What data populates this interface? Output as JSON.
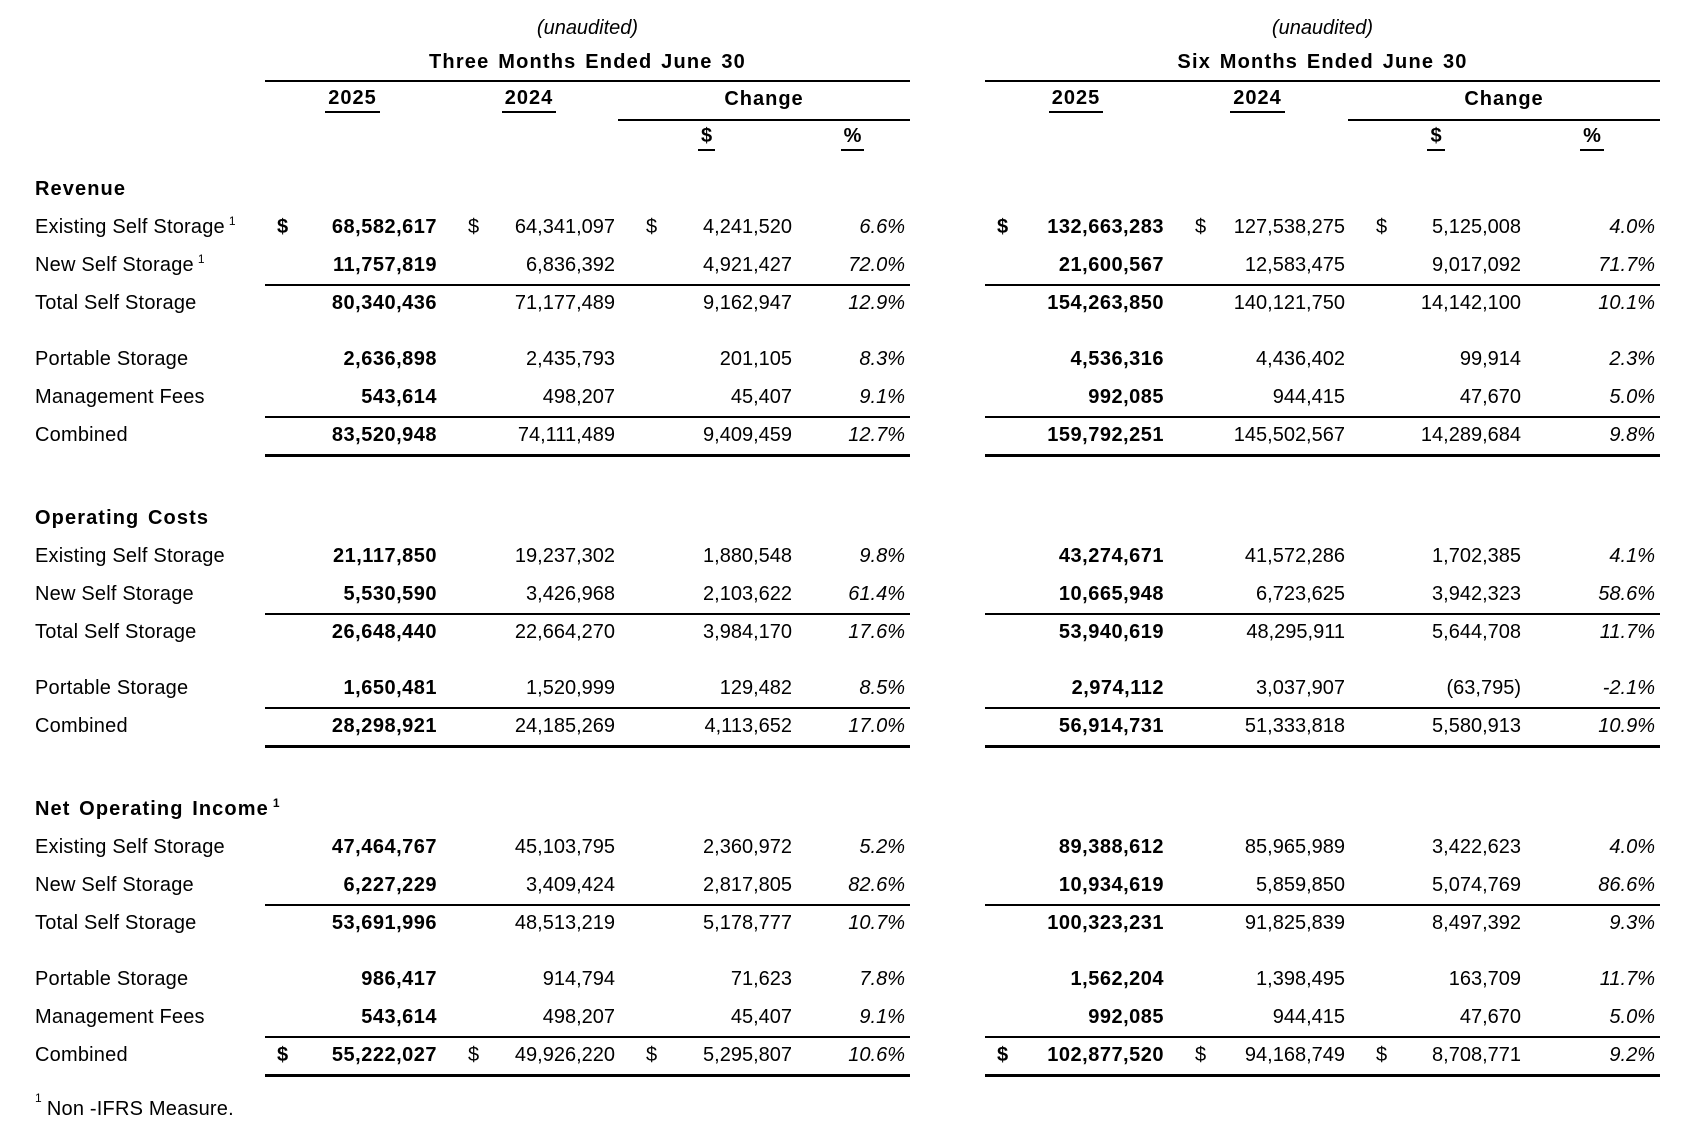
{
  "header": {
    "unaudited": "(unaudited)",
    "left_title": "Three Months Ended June 30",
    "right_title": "Six Months Ended June 30",
    "col_2025": "2025",
    "col_2024": "2024",
    "col_change": "Change",
    "col_dollar": "$",
    "col_pct": "%"
  },
  "footnote": {
    "sup": "1",
    "text": "Non -IFRS Measure."
  },
  "sections": [
    {
      "title": "Revenue",
      "title_sup": "",
      "rows": [
        {
          "label": "Existing Self Storage",
          "sup": "1",
          "tm": {
            "c25": "$",
            "v25": "68,582,617",
            "c24": "$",
            "v24": "64,341,097",
            "cch": "$",
            "vch": "4,241,520",
            "pct": "6.6%"
          },
          "sm": {
            "c25": "$",
            "v25": "132,663,283",
            "c24": "$",
            "v24": "127,538,275",
            "cch": "$",
            "vch": "5,125,008",
            "pct": "4.0%"
          }
        },
        {
          "label": "New Self Storage",
          "sup": "1",
          "tm": {
            "c25": "",
            "v25": "11,757,819",
            "c24": "",
            "v24": "6,836,392",
            "cch": "",
            "vch": "4,921,427",
            "pct": "72.0%"
          },
          "sm": {
            "c25": "",
            "v25": "21,600,567",
            "c24": "",
            "v24": "12,583,475",
            "cch": "",
            "vch": "9,017,092",
            "pct": "71.7%"
          }
        },
        {
          "label": "Total Self Storage",
          "sup": "",
          "tm": {
            "c25": "",
            "v25": "80,340,436",
            "c24": "",
            "v24": "71,177,489",
            "cch": "",
            "vch": "9,162,947",
            "pct": "12.9%"
          },
          "sm": {
            "c25": "",
            "v25": "154,263,850",
            "c24": "",
            "v24": "140,121,750",
            "cch": "",
            "vch": "14,142,100",
            "pct": "10.1%"
          }
        },
        {
          "label": "Portable Storage",
          "sup": "",
          "tm": {
            "c25": "",
            "v25": "2,636,898",
            "c24": "",
            "v24": "2,435,793",
            "cch": "",
            "vch": "201,105",
            "pct": "8.3%"
          },
          "sm": {
            "c25": "",
            "v25": "4,536,316",
            "c24": "",
            "v24": "4,436,402",
            "cch": "",
            "vch": "99,914",
            "pct": "2.3%"
          }
        },
        {
          "label": "Management Fees",
          "sup": "",
          "tm": {
            "c25": "",
            "v25": "543,614",
            "c24": "",
            "v24": "498,207",
            "cch": "",
            "vch": "45,407",
            "pct": "9.1%"
          },
          "sm": {
            "c25": "",
            "v25": "992,085",
            "c24": "",
            "v24": "944,415",
            "cch": "",
            "vch": "47,670",
            "pct": "5.0%"
          }
        },
        {
          "label": "Combined",
          "sup": "",
          "tm": {
            "c25": "",
            "v25": "83,520,948",
            "c24": "",
            "v24": "74,111,489",
            "cch": "",
            "vch": "9,409,459",
            "pct": "12.7%"
          },
          "sm": {
            "c25": "",
            "v25": "159,792,251",
            "c24": "",
            "v24": "145,502,567",
            "cch": "",
            "vch": "14,289,684",
            "pct": "9.8%"
          }
        }
      ]
    },
    {
      "title": "Operating Costs",
      "title_sup": "",
      "rows": [
        {
          "label": "Existing Self Storage",
          "sup": "",
          "tm": {
            "c25": "",
            "v25": "21,117,850",
            "c24": "",
            "v24": "19,237,302",
            "cch": "",
            "vch": "1,880,548",
            "pct": "9.8%"
          },
          "sm": {
            "c25": "",
            "v25": "43,274,671",
            "c24": "",
            "v24": "41,572,286",
            "cch": "",
            "vch": "1,702,385",
            "pct": "4.1%"
          }
        },
        {
          "label": "New Self Storage",
          "sup": "",
          "tm": {
            "c25": "",
            "v25": "5,530,590",
            "c24": "",
            "v24": "3,426,968",
            "cch": "",
            "vch": "2,103,622",
            "pct": "61.4%"
          },
          "sm": {
            "c25": "",
            "v25": "10,665,948",
            "c24": "",
            "v24": "6,723,625",
            "cch": "",
            "vch": "3,942,323",
            "pct": "58.6%"
          }
        },
        {
          "label": "Total Self Storage",
          "sup": "",
          "tm": {
            "c25": "",
            "v25": "26,648,440",
            "c24": "",
            "v24": "22,664,270",
            "cch": "",
            "vch": "3,984,170",
            "pct": "17.6%"
          },
          "sm": {
            "c25": "",
            "v25": "53,940,619",
            "c24": "",
            "v24": "48,295,911",
            "cch": "",
            "vch": "5,644,708",
            "pct": "11.7%"
          }
        },
        {
          "label": "Portable Storage",
          "sup": "",
          "tm": {
            "c25": "",
            "v25": "1,650,481",
            "c24": "",
            "v24": "1,520,999",
            "cch": "",
            "vch": "129,482",
            "pct": "8.5%"
          },
          "sm": {
            "c25": "",
            "v25": "2,974,112",
            "c24": "",
            "v24": "3,037,907",
            "cch": "",
            "vch": "(63,795)",
            "pct": "-2.1%"
          }
        },
        {
          "label": "Combined",
          "sup": "",
          "tm": {
            "c25": "",
            "v25": "28,298,921",
            "c24": "",
            "v24": "24,185,269",
            "cch": "",
            "vch": "4,113,652",
            "pct": "17.0%"
          },
          "sm": {
            "c25": "",
            "v25": "56,914,731",
            "c24": "",
            "v24": "51,333,818",
            "cch": "",
            "vch": "5,580,913",
            "pct": "10.9%"
          }
        }
      ]
    },
    {
      "title": "Net Operating Income",
      "title_sup": "1",
      "rows": [
        {
          "label": "Existing Self Storage",
          "sup": "",
          "tm": {
            "c25": "",
            "v25": "47,464,767",
            "c24": "",
            "v24": "45,103,795",
            "cch": "",
            "vch": "2,360,972",
            "pct": "5.2%"
          },
          "sm": {
            "c25": "",
            "v25": "89,388,612",
            "c24": "",
            "v24": "85,965,989",
            "cch": "",
            "vch": "3,422,623",
            "pct": "4.0%"
          }
        },
        {
          "label": "New Self Storage",
          "sup": "",
          "tm": {
            "c25": "",
            "v25": "6,227,229",
            "c24": "",
            "v24": "3,409,424",
            "cch": "",
            "vch": "2,817,805",
            "pct": "82.6%"
          },
          "sm": {
            "c25": "",
            "v25": "10,934,619",
            "c24": "",
            "v24": "5,859,850",
            "cch": "",
            "vch": "5,074,769",
            "pct": "86.6%"
          }
        },
        {
          "label": "Total Self Storage",
          "sup": "",
          "tm": {
            "c25": "",
            "v25": "53,691,996",
            "c24": "",
            "v24": "48,513,219",
            "cch": "",
            "vch": "5,178,777",
            "pct": "10.7%"
          },
          "sm": {
            "c25": "",
            "v25": "100,323,231",
            "c24": "",
            "v24": "91,825,839",
            "cch": "",
            "vch": "8,497,392",
            "pct": "9.3%"
          }
        },
        {
          "label": "Portable Storage",
          "sup": "",
          "tm": {
            "c25": "",
            "v25": "986,417",
            "c24": "",
            "v24": "914,794",
            "cch": "",
            "vch": "71,623",
            "pct": "7.8%"
          },
          "sm": {
            "c25": "",
            "v25": "1,562,204",
            "c24": "",
            "v24": "1,398,495",
            "cch": "",
            "vch": "163,709",
            "pct": "11.7%"
          }
        },
        {
          "label": "Management Fees",
          "sup": "",
          "tm": {
            "c25": "",
            "v25": "543,614",
            "c24": "",
            "v24": "498,207",
            "cch": "",
            "vch": "45,407",
            "pct": "9.1%"
          },
          "sm": {
            "c25": "",
            "v25": "992,085",
            "c24": "",
            "v24": "944,415",
            "cch": "",
            "vch": "47,670",
            "pct": "5.0%"
          }
        },
        {
          "label": "Combined",
          "sup": "",
          "tm": {
            "c25": "$",
            "v25": "55,222,027",
            "c24": "$",
            "v24": "49,926,220",
            "cch": "$",
            "vch": "5,295,807",
            "pct": "10.6%"
          },
          "sm": {
            "c25": "$",
            "v25": "102,877,520",
            "c24": "$",
            "v24": "94,168,749",
            "cch": "$",
            "vch": "8,708,771",
            "pct": "9.2%"
          }
        }
      ]
    }
  ]
}
